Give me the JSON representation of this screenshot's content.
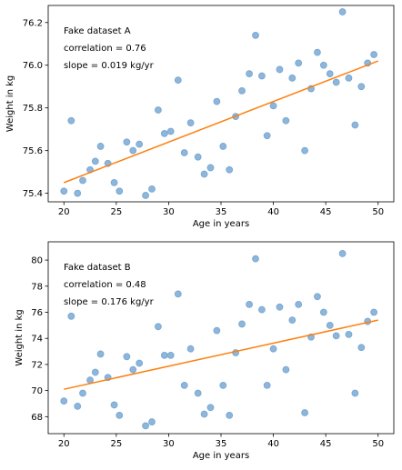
{
  "chart_data": [
    {
      "type": "scatter",
      "xlabel": "Age in years",
      "ylabel": "Weight in kg",
      "xlim": [
        18.5,
        51.5
      ],
      "ylim": [
        75.36,
        76.28
      ],
      "xticks": [
        "20",
        "25",
        "30",
        "35",
        "40",
        "45",
        "50"
      ],
      "yticks": [
        "75.4",
        "75.6",
        "75.8",
        "76.0",
        "76.2"
      ],
      "annotations": [
        "Fake dataset A",
        "correlation = 0.76",
        "slope = 0.019 kg/yr"
      ],
      "point_color": "#7aa9d3",
      "line_color": "#ff7f0e",
      "fit_line": {
        "x": [
          20,
          50
        ],
        "y": [
          75.45,
          76.02
        ]
      },
      "x": [
        20,
        20.7,
        21.3,
        21.8,
        22.5,
        23.0,
        23.5,
        24.2,
        24.8,
        25.3,
        26.0,
        26.6,
        27.2,
        27.8,
        28.4,
        29.0,
        29.6,
        30.2,
        30.9,
        31.5,
        32.1,
        32.8,
        33.4,
        34.0,
        34.6,
        35.2,
        35.8,
        36.4,
        37.0,
        37.7,
        38.3,
        38.9,
        39.4,
        40.0,
        40.6,
        41.2,
        41.8,
        42.4,
        43.0,
        43.6,
        44.2,
        44.8,
        45.4,
        46.0,
        46.6,
        47.2,
        47.8,
        48.4,
        49.0,
        49.6
      ],
      "y": [
        75.41,
        75.74,
        75.4,
        75.46,
        75.51,
        75.55,
        75.62,
        75.54,
        75.45,
        75.41,
        75.64,
        75.6,
        75.63,
        75.39,
        75.42,
        75.79,
        75.68,
        75.69,
        75.93,
        75.59,
        75.73,
        75.57,
        75.49,
        75.52,
        75.83,
        75.62,
        75.51,
        75.76,
        75.88,
        75.96,
        76.14,
        75.95,
        75.67,
        75.81,
        75.98,
        75.74,
        75.94,
        76.01,
        75.6,
        75.89,
        76.06,
        76.0,
        75.96,
        75.92,
        76.25,
        75.94,
        75.72,
        75.9,
        76.01,
        76.05
      ]
    },
    {
      "type": "scatter",
      "xlabel": "Age in years",
      "ylabel": "Weight in kg",
      "xlim": [
        18.5,
        51.5
      ],
      "ylim": [
        66.7,
        81.4
      ],
      "xticks": [
        "20",
        "25",
        "30",
        "35",
        "40",
        "45",
        "50"
      ],
      "yticks": [
        "68",
        "70",
        "72",
        "74",
        "76",
        "78",
        "80"
      ],
      "annotations": [
        "Fake dataset B",
        "correlation = 0.48",
        "slope = 0.176 kg/yr"
      ],
      "point_color": "#7aa9d3",
      "line_color": "#ff7f0e",
      "fit_line": {
        "x": [
          20,
          50
        ],
        "y": [
          70.1,
          75.4
        ]
      },
      "x": [
        20,
        20.7,
        21.3,
        21.8,
        22.5,
        23.0,
        23.5,
        24.2,
        24.8,
        25.3,
        26.0,
        26.6,
        27.2,
        27.8,
        28.4,
        29.0,
        29.6,
        30.2,
        30.9,
        31.5,
        32.1,
        32.8,
        33.4,
        34.0,
        34.6,
        35.2,
        35.8,
        36.4,
        37.0,
        37.7,
        38.3,
        38.9,
        39.4,
        40.0,
        40.6,
        41.2,
        41.8,
        42.4,
        43.0,
        43.6,
        44.2,
        44.8,
        45.4,
        46.0,
        46.6,
        47.2,
        47.8,
        48.4,
        49.0,
        49.6
      ],
      "y": [
        69.2,
        75.7,
        68.8,
        69.8,
        70.8,
        71.4,
        72.8,
        71.0,
        68.9,
        68.1,
        72.6,
        71.6,
        72.1,
        67.3,
        67.6,
        74.9,
        72.7,
        72.7,
        77.4,
        70.4,
        73.2,
        69.8,
        68.2,
        68.7,
        74.6,
        70.4,
        68.1,
        72.9,
        75.1,
        76.6,
        80.1,
        76.2,
        70.4,
        73.2,
        76.4,
        71.6,
        75.4,
        76.6,
        68.3,
        74.1,
        77.2,
        76.0,
        75.0,
        74.2,
        80.5,
        74.3,
        69.8,
        73.3,
        75.3,
        76.0
      ]
    }
  ]
}
